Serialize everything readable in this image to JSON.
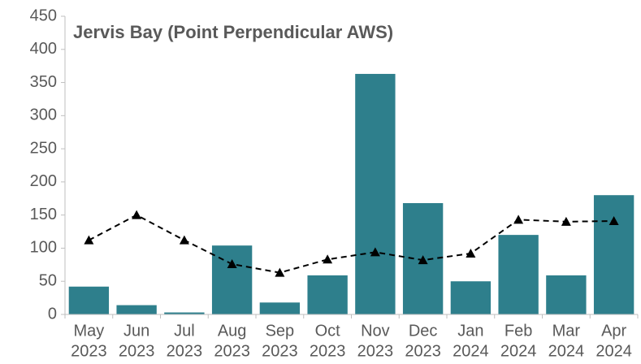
{
  "chart_data": {
    "type": "bar",
    "title": "Jervis Bay (Point Perpendicular AWS)",
    "categories": [
      [
        "May",
        "2023"
      ],
      [
        "Jun",
        "2023"
      ],
      [
        "Jul",
        "2023"
      ],
      [
        "Aug",
        "2023"
      ],
      [
        "Sep",
        "2023"
      ],
      [
        "Oct",
        "2023"
      ],
      [
        "Nov",
        "2023"
      ],
      [
        "Dec",
        "2023"
      ],
      [
        "Jan",
        "2024"
      ],
      [
        "Feb",
        "2024"
      ],
      [
        "Mar",
        "2024"
      ],
      [
        "Apr",
        "2024"
      ]
    ],
    "series": [
      {
        "type": "bar",
        "color": "#2e7f8c",
        "values": [
          42,
          14,
          3,
          104,
          18,
          59,
          363,
          168,
          50,
          120,
          59,
          180
        ]
      },
      {
        "type": "line",
        "color": "#000000",
        "dashed": true,
        "marker": "triangle",
        "values": [
          112,
          150,
          112,
          76,
          63,
          83,
          94,
          82,
          92,
          143,
          140,
          141
        ]
      }
    ],
    "ylim": [
      0,
      450
    ],
    "yticks": [
      0,
      50,
      100,
      150,
      200,
      250,
      300,
      350,
      400,
      450
    ],
    "grid": false
  }
}
